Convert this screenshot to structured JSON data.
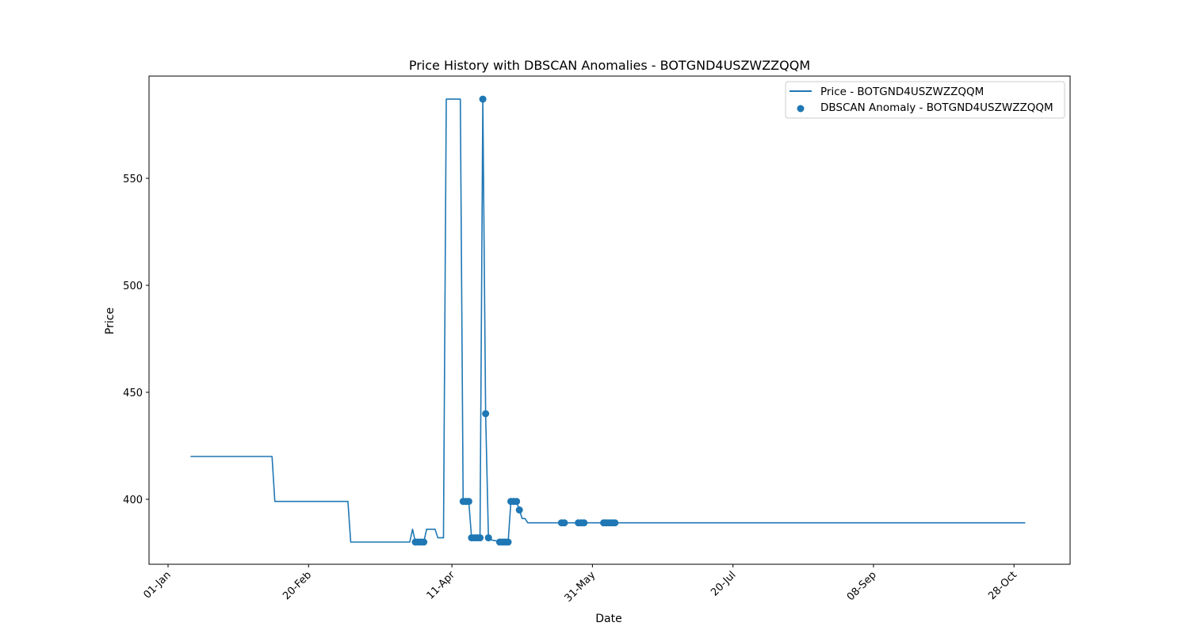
{
  "chart_data": {
    "type": "line",
    "title": "Price History with DBSCAN Anomalies - BOTGND4USZWZZQQM",
    "xlabel": "Date",
    "ylabel": "Price",
    "x_ticks": [
      "01-Jan",
      "20-Feb",
      "11-Apr",
      "31-May",
      "20-Jul",
      "08-Sep",
      "28-Oct"
    ],
    "y_ticks": [
      400,
      450,
      500,
      550
    ],
    "ylim": [
      370,
      597
    ],
    "xlim": [
      "2023-12-25",
      "2023-11-06"
    ],
    "legend": "top-right",
    "grid": false,
    "colors": {
      "series": "#1f77b4"
    },
    "series": [
      {
        "name": "Price - BOTGND4USZWZZQQM",
        "kind": "line",
        "points": [
          [
            "2024-01-09",
            420
          ],
          [
            "2024-02-07",
            420
          ],
          [
            "2024-02-08",
            399
          ],
          [
            "2024-03-05",
            399
          ],
          [
            "2024-03-06",
            380
          ],
          [
            "2024-03-27",
            380
          ],
          [
            "2024-03-28",
            386
          ],
          [
            "2024-03-29",
            380
          ],
          [
            "2024-04-01",
            380
          ],
          [
            "2024-04-02",
            386
          ],
          [
            "2024-04-05",
            386
          ],
          [
            "2024-04-06",
            382
          ],
          [
            "2024-04-08",
            382
          ],
          [
            "2024-04-09",
            587
          ],
          [
            "2024-04-14",
            587
          ],
          [
            "2024-04-15",
            399
          ],
          [
            "2024-04-17",
            399
          ],
          [
            "2024-04-18",
            382
          ],
          [
            "2024-04-21",
            382
          ],
          [
            "2024-04-22",
            587
          ],
          [
            "2024-04-23",
            440
          ],
          [
            "2024-04-24",
            382
          ],
          [
            "2024-04-25",
            381
          ],
          [
            "2024-04-29",
            380
          ],
          [
            "2024-05-01",
            380
          ],
          [
            "2024-05-02",
            399
          ],
          [
            "2024-05-04",
            399
          ],
          [
            "2024-05-05",
            395
          ],
          [
            "2024-05-06",
            391
          ],
          [
            "2024-05-07",
            391
          ],
          [
            "2024-05-08",
            389
          ],
          [
            "2024-11-01",
            389
          ]
        ]
      },
      {
        "name": "DBSCAN Anomaly - BOTGND4USZWZZQQM",
        "kind": "scatter",
        "points": [
          [
            "2024-03-29",
            380
          ],
          [
            "2024-03-30",
            380
          ],
          [
            "2024-03-31",
            380
          ],
          [
            "2024-04-01",
            380
          ],
          [
            "2024-04-15",
            399
          ],
          [
            "2024-04-16",
            399
          ],
          [
            "2024-04-17",
            399
          ],
          [
            "2024-04-18",
            382
          ],
          [
            "2024-04-19",
            382
          ],
          [
            "2024-04-20",
            382
          ],
          [
            "2024-04-21",
            382
          ],
          [
            "2024-04-22",
            587
          ],
          [
            "2024-04-23",
            440
          ],
          [
            "2024-04-24",
            382
          ],
          [
            "2024-04-28",
            380
          ],
          [
            "2024-04-29",
            380
          ],
          [
            "2024-04-30",
            380
          ],
          [
            "2024-05-01",
            380
          ],
          [
            "2024-05-02",
            399
          ],
          [
            "2024-05-03",
            399
          ],
          [
            "2024-05-04",
            399
          ],
          [
            "2024-05-05",
            395
          ],
          [
            "2024-05-20",
            389
          ],
          [
            "2024-05-21",
            389
          ],
          [
            "2024-05-26",
            389
          ],
          [
            "2024-05-27",
            389
          ],
          [
            "2024-05-28",
            389
          ],
          [
            "2024-06-04",
            389
          ],
          [
            "2024-06-05",
            389
          ],
          [
            "2024-06-06",
            389
          ],
          [
            "2024-06-07",
            389
          ],
          [
            "2024-06-08",
            389
          ]
        ]
      }
    ]
  }
}
